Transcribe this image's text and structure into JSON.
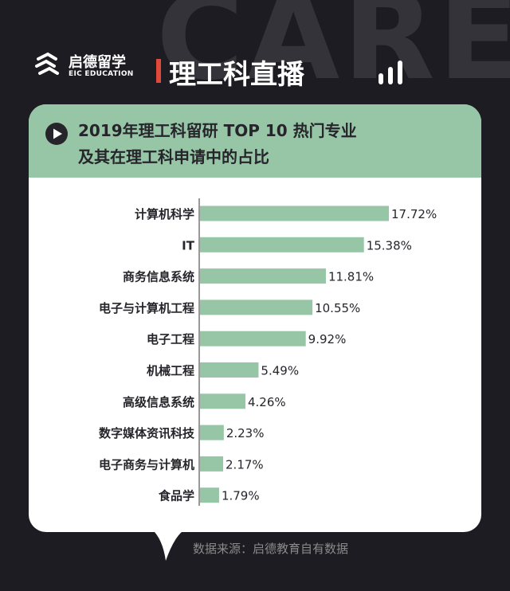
{
  "background_word": "CARE",
  "brand": {
    "name_cn": "启德留学",
    "name_en": "EIC EDUCATION"
  },
  "header": {
    "title": "理工科直播"
  },
  "card": {
    "title_line1": "2019年理工科留研 TOP 10 热门专业",
    "title_line2": "及其在理工科申请中的占比"
  },
  "source": "数据来源：启德教育自有数据",
  "colors": {
    "bar": "#97c6a6",
    "background": "#1d1c22",
    "accent": "#e0483a",
    "text": "#26252b"
  },
  "icons": {
    "logo": "eic-logo-icon",
    "bars": "bar-chart-icon",
    "play": "play-icon"
  },
  "chart_data": {
    "type": "bar",
    "orientation": "horizontal",
    "categories": [
      "计算机科学",
      "IT",
      "商务信息系统",
      "电子与计算机工程",
      "电子工程",
      "机械工程",
      "高级信息系统",
      "数字媒体资讯科技",
      "电子商务与计算机",
      "食品学"
    ],
    "values": [
      17.72,
      15.38,
      11.81,
      10.55,
      9.92,
      5.49,
      4.26,
      2.23,
      2.17,
      1.79
    ],
    "value_labels": [
      "17.72%",
      "15.38%",
      "11.81%",
      "10.55%",
      "9.92%",
      "5.49%",
      "4.26%",
      "2.23%",
      "2.17%",
      "1.79%"
    ],
    "unit": "%",
    "xlim": [
      0,
      17.72
    ],
    "grid": false,
    "legend": "none"
  }
}
